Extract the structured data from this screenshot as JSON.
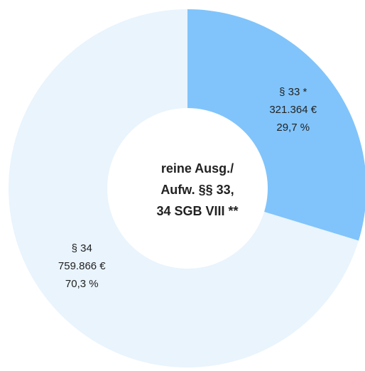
{
  "chart_data": {
    "type": "pie",
    "title_lines": [
      "reine Ausg./",
      "Aufw. §§ 33,",
      "34 SGB VIII **"
    ],
    "categories": [
      "§ 33 *",
      "§ 34"
    ],
    "values": [
      321364,
      759866
    ],
    "value_labels": [
      "321.364 €",
      "759.866 €"
    ],
    "percents": [
      29.7,
      70.3
    ],
    "percent_labels": [
      "29,7 %",
      "70,3 %"
    ],
    "colors": [
      "#80c4fb",
      "#e9f4fd"
    ],
    "donut": true
  }
}
